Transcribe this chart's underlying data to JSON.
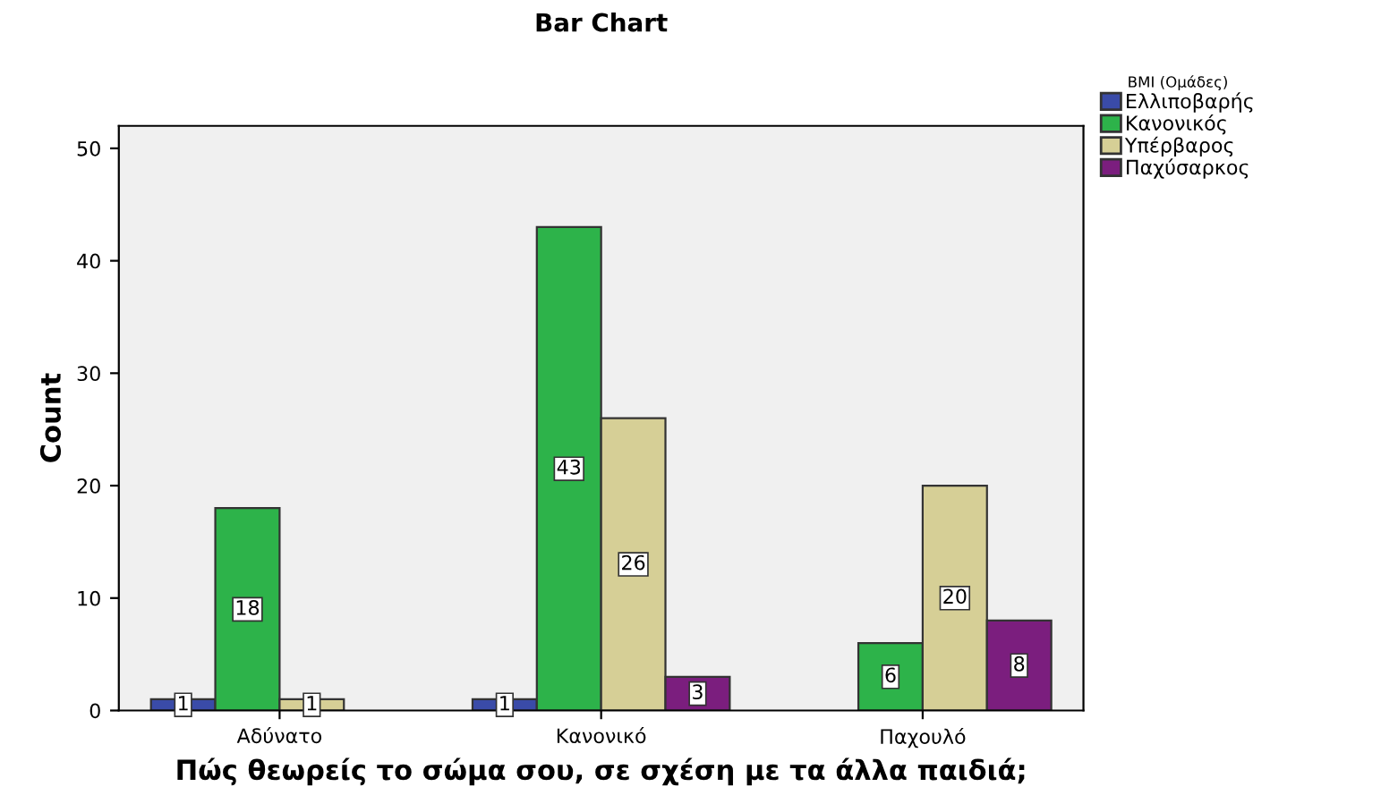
{
  "chart_data": {
    "type": "bar",
    "title": "Bar Chart",
    "xlabel": "Πώς θεωρείς το σώμα σου, σε σχέση με τα άλλα παιδιά;",
    "ylabel": "Count",
    "legend_title": "BMI (Ομάδες)",
    "categories": [
      "Αδύνατο",
      "Κανονικό",
      "Παχουλό"
    ],
    "series": [
      {
        "name": "Ελλιποβαρής",
        "color": "#3a4ba8",
        "values": [
          1,
          1,
          null
        ]
      },
      {
        "name": "Κανονικός",
        "color": "#2db34a",
        "values": [
          18,
          43,
          6
        ]
      },
      {
        "name": "Υπέρβαρος",
        "color": "#d6cf96",
        "values": [
          1,
          26,
          20
        ]
      },
      {
        "name": "Παχύσαρκος",
        "color": "#7b1e7e",
        "values": [
          null,
          3,
          8
        ]
      }
    ],
    "ylim": [
      0,
      52
    ],
    "yticks": [
      0,
      10,
      20,
      30,
      40,
      50
    ],
    "grid": false,
    "legend": "top right",
    "data_labels": true
  }
}
